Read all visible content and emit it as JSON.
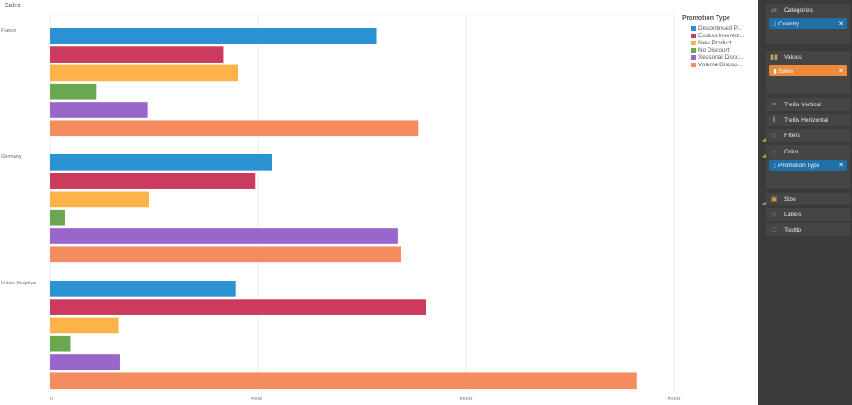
{
  "chart_title": "Sales",
  "chart_data": {
    "type": "bar",
    "orientation": "horizontal",
    "title": "Sales",
    "xlabel": "",
    "ylabel": "",
    "xlim": [
      0,
      1500000
    ],
    "x_ticks": [
      {
        "value": 0,
        "label": "0"
      },
      {
        "value": 500000,
        "label": "500K"
      },
      {
        "value": 1000000,
        "label": "1000K"
      },
      {
        "value": 1500000,
        "label": "1500K"
      }
    ],
    "grid": true,
    "legend_title": "Promotion Type",
    "legend_position": "top-right",
    "categories": [
      "France",
      "Germany",
      "United Kingdom"
    ],
    "series": [
      {
        "name": "Discontinued Product",
        "legend_label": "Discontinued P...",
        "color": "#2b93d3",
        "values": [
          785000,
          533000,
          447000
        ]
      },
      {
        "name": "Excess Inventory",
        "legend_label": "Excess Inventor...",
        "color": "#cc3a5e",
        "values": [
          418000,
          494000,
          904000
        ]
      },
      {
        "name": "New Product",
        "legend_label": "New Product",
        "color": "#fdb34a",
        "values": [
          452000,
          238000,
          165000
        ]
      },
      {
        "name": "No Discount",
        "legend_label": "No Discount",
        "color": "#6aa84f",
        "values": [
          112000,
          37000,
          49000
        ]
      },
      {
        "name": "Seasonal Discount",
        "legend_label": "Seasonal Disco...",
        "color": "#9966cc",
        "values": [
          235000,
          836000,
          168000
        ]
      },
      {
        "name": "Volume Discount",
        "legend_label": "Volume Discou...",
        "color": "#f58c5f",
        "values": [
          885000,
          845000,
          1410000
        ]
      }
    ]
  },
  "panel": {
    "categories": {
      "title": "Categories",
      "icon": "tag-icon",
      "chip": "Country"
    },
    "values": {
      "title": "Values",
      "icon": "bar-chart-icon",
      "chip": "Sales"
    },
    "trellis_vertical": {
      "title": "Trellis Vertical",
      "icon": "vertical-lines-icon"
    },
    "trellis_horizontal": {
      "title": "Trellis Horizontal",
      "icon": "horizontal-lines-icon"
    },
    "filters": {
      "title": "Filters",
      "icon": "funnel-icon"
    },
    "color": {
      "title": "Color",
      "icon": "palette-icon",
      "chip": "Promotion Type"
    },
    "size": {
      "title": "Size",
      "icon": "resize-icon"
    },
    "labels": {
      "title": "Labels",
      "icon": "label-tag-icon"
    },
    "tooltip": {
      "title": "Tooltip",
      "icon": "speech-bubble-icon"
    },
    "colors": {
      "panel_bg": "#3b3b3b",
      "section_bg": "#454545",
      "blue_chip": "#1f6fa8",
      "orange_chip": "#ee8a3c"
    }
  }
}
